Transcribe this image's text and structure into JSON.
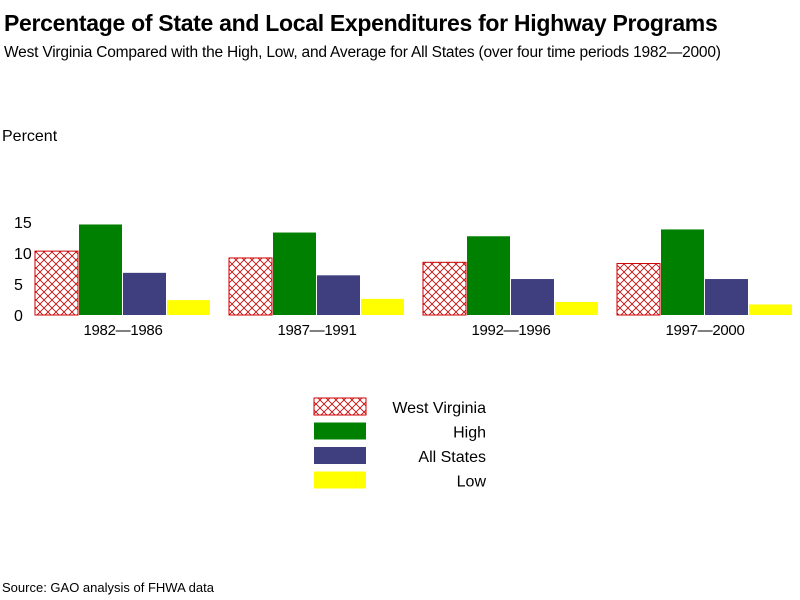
{
  "chart_data": {
    "type": "bar",
    "title": "Percentage of State and Local Expenditures for Highway Programs",
    "subtitle": "West Virginia Compared with the High, Low, and Average for All States (over four time periods 1982—2000)",
    "ylabel": "Percent",
    "xlabel": "",
    "ylim": [
      0,
      15
    ],
    "yticks": [
      "0",
      "5",
      "10",
      "15"
    ],
    "categories": [
      "1982—1986",
      "1987—1991",
      "1992—1996",
      "1997—2000"
    ],
    "series": [
      {
        "name": "West Virginia",
        "values": [
          10.3,
          9.2,
          8.5,
          8.3
        ],
        "color": "#cc0000",
        "pattern": "crosshatch"
      },
      {
        "name": "High",
        "values": [
          14.6,
          13.3,
          12.7,
          13.8
        ],
        "color": "#008000",
        "pattern": "solid"
      },
      {
        "name": "All States",
        "values": [
          6.8,
          6.4,
          5.8,
          5.8
        ],
        "color": "#3f3f7f",
        "pattern": "solid"
      },
      {
        "name": "Low",
        "values": [
          2.4,
          2.6,
          2.1,
          1.7
        ],
        "color": "#ffff00",
        "pattern": "solid"
      }
    ],
    "legend_position": "bottom-center",
    "grid": false
  },
  "source": "Source: GAO analysis of FHWA data"
}
